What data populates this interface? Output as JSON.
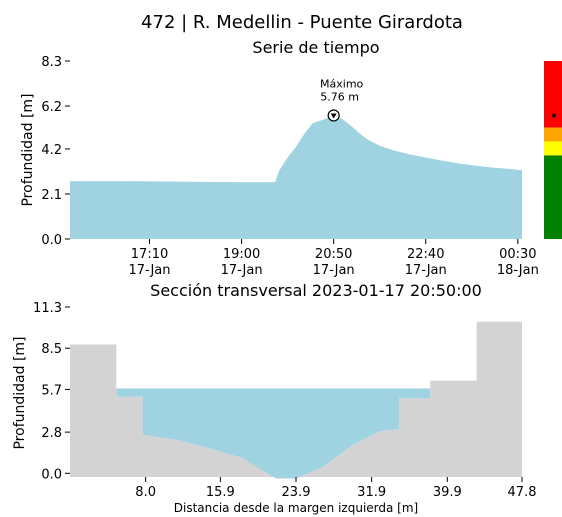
{
  "figure": {
    "suptitle": "472 | R. Medellin - Puente Girardota"
  },
  "chart_data": [
    {
      "type": "area",
      "title": "Serie de tiempo",
      "xlabel": "",
      "ylabel": "Profundidad [m]",
      "fill_color": "#9fd3e2",
      "x_range": [
        "2023-01-17T15:35",
        "2023-01-18T00:35"
      ],
      "ylim": [
        0,
        8.3
      ],
      "yticks": [
        "0.0",
        "2.1",
        "4.2",
        "6.2",
        "8.3"
      ],
      "xticks": [
        {
          "t": "2023-01-17T17:10",
          "line1": "17:10",
          "line2": "17-Jan"
        },
        {
          "t": "2023-01-17T19:00",
          "line1": "19:00",
          "line2": "17-Jan"
        },
        {
          "t": "2023-01-17T20:50",
          "line1": "20:50",
          "line2": "17-Jan"
        },
        {
          "t": "2023-01-17T22:40",
          "line1": "22:40",
          "line2": "17-Jan"
        },
        {
          "t": "2023-01-18T00:30",
          "line1": "00:30",
          "line2": "18-Jan"
        }
      ],
      "x": [
        "2023-01-17T15:35",
        "2023-01-17T16:30",
        "2023-01-17T17:30",
        "2023-01-17T18:30",
        "2023-01-17T19:10",
        "2023-01-17T19:30",
        "2023-01-17T19:40",
        "2023-01-17T19:45",
        "2023-01-17T19:55",
        "2023-01-17T20:05",
        "2023-01-17T20:15",
        "2023-01-17T20:25",
        "2023-01-17T20:40",
        "2023-01-17T20:50",
        "2023-01-17T21:00",
        "2023-01-17T21:10",
        "2023-01-17T21:20",
        "2023-01-17T21:30",
        "2023-01-17T21:45",
        "2023-01-17T22:00",
        "2023-01-17T22:20",
        "2023-01-17T22:40",
        "2023-01-17T23:00",
        "2023-01-17T23:20",
        "2023-01-17T23:40",
        "2023-01-18T00:00",
        "2023-01-18T00:20",
        "2023-01-18T00:35"
      ],
      "y": [
        2.7,
        2.7,
        2.68,
        2.66,
        2.65,
        2.65,
        2.66,
        3.2,
        3.8,
        4.3,
        4.9,
        5.4,
        5.6,
        5.76,
        5.6,
        5.3,
        4.95,
        4.65,
        4.35,
        4.15,
        3.95,
        3.8,
        3.65,
        3.52,
        3.42,
        3.33,
        3.27,
        3.2
      ],
      "annotation": {
        "label": "Máximo",
        "value": "5.76 m",
        "t": "2023-01-17T20:50",
        "y": 5.76
      },
      "alert_bar": {
        "levels": [
          {
            "from": 0.0,
            "to": 3.9,
            "color": "#008000"
          },
          {
            "from": 3.9,
            "to": 4.55,
            "color": "#ffff00"
          },
          {
            "from": 4.55,
            "to": 5.2,
            "color": "#ffa500"
          },
          {
            "from": 5.2,
            "to": 8.3,
            "color": "#ff0000"
          }
        ],
        "marker": 5.76
      }
    },
    {
      "type": "area",
      "title": "Sección transversal 2023-01-17 20:50:00",
      "xlabel": "Distancia desde la margen izquierda [m]",
      "ylabel": "Profundidad [m]",
      "ground_color": "#d3d3d3",
      "water_color": "#9fd3e2",
      "xlim": [
        0,
        47.8
      ],
      "ylim": [
        -0.25,
        11.3
      ],
      "yticks": [
        "0.0",
        "2.8",
        "5.7",
        "8.5",
        "11.3"
      ],
      "xticks": [
        "8.0",
        "15.9",
        "23.9",
        "31.9",
        "39.9",
        "47.8"
      ],
      "water_level": 5.76,
      "bed_x": [
        0,
        4.9,
        4.9,
        7.7,
        7.7,
        11.5,
        14.5,
        18.2,
        21.8,
        23.9,
        26.9,
        29.8,
        32.7,
        34.8,
        34.8,
        38.1,
        38.1,
        43.0,
        43.0,
        47.8
      ],
      "bed_y": [
        8.75,
        8.75,
        5.2,
        5.2,
        2.6,
        2.25,
        1.75,
        1.05,
        -0.35,
        -0.35,
        0.5,
        1.9,
        2.85,
        3.0,
        5.1,
        5.1,
        6.3,
        6.3,
        10.3,
        10.3
      ]
    }
  ]
}
